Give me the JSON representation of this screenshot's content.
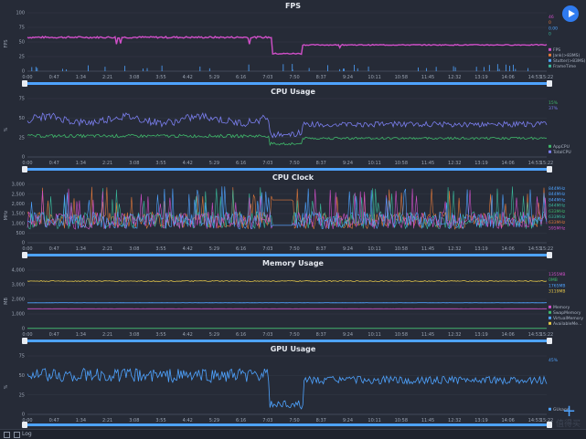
{
  "app": {
    "footer_log_label": "Log",
    "watermark": "值得买"
  },
  "x_tick_labels": [
    "0:00",
    "0:47",
    "1:34",
    "2:21",
    "3:08",
    "3:55",
    "4:42",
    "5:29",
    "6:16",
    "7:03",
    "7:50",
    "8:37",
    "9:24",
    "10:11",
    "10:58",
    "11:45",
    "12:32",
    "13:19",
    "14:06",
    "14:53",
    "15:22"
  ],
  "panels": [
    {
      "key": "fps",
      "title": "FPS",
      "y_unit": "FPS",
      "y_ticks": [
        "100",
        "75",
        "50",
        "25",
        "0"
      ],
      "legend_values": [
        {
          "text": "46",
          "color": "#d04fc8"
        },
        {
          "text": "0",
          "color": "#e0783a"
        },
        {
          "text": "0.00",
          "color": "#4ea3ff"
        },
        {
          "text": "0",
          "color": "#3ab89a"
        }
      ],
      "legend_items": [
        {
          "text": "FPS",
          "color": "#d04fc8"
        },
        {
          "text": "Jank(>83MS)",
          "color": "#e0783a"
        },
        {
          "text": "Stutter(>83MS)",
          "color": "#4ea3ff"
        },
        {
          "text": "FrameTime",
          "color": "#3ab89a"
        }
      ]
    },
    {
      "key": "cpu",
      "title": "CPU Usage",
      "y_unit": "%",
      "y_ticks": [
        "75",
        "50",
        "25",
        "0"
      ],
      "legend_values": [
        {
          "text": "15%",
          "color": "#3fb86a"
        },
        {
          "text": "37%",
          "color": "#7b7ff0"
        }
      ],
      "legend_items": [
        {
          "text": "AppCPU",
          "color": "#3fb86a"
        },
        {
          "text": "TotalCPU",
          "color": "#7b7ff0"
        }
      ]
    },
    {
      "key": "clock",
      "title": "CPU Clock",
      "y_unit": "MHz",
      "y_ticks": [
        "3,000",
        "2,500",
        "2,000",
        "1,500",
        "1,000",
        "500",
        "0"
      ],
      "legend_values": [
        {
          "text": "844MHz",
          "color": "#4ea3ff"
        },
        {
          "text": "844MHz",
          "color": "#4ea3ff"
        },
        {
          "text": "844MHz",
          "color": "#4ea3ff"
        },
        {
          "text": "844MHz",
          "color": "#3ab89a"
        },
        {
          "text": "633MHz",
          "color": "#3fb86a"
        },
        {
          "text": "633MHz",
          "color": "#3ab89a"
        },
        {
          "text": "633MHz",
          "color": "#e0783a"
        },
        {
          "text": "595MHz",
          "color": "#d04fc8"
        }
      ],
      "legend_items": []
    },
    {
      "key": "memory",
      "title": "Memory Usage",
      "y_unit": "MB",
      "y_ticks": [
        "4,000",
        "3,000",
        "2,000",
        "1,000",
        "0"
      ],
      "legend_values": [
        {
          "text": "1355MB",
          "color": "#d04fc8"
        },
        {
          "text": "0MB",
          "color": "#3fb86a"
        },
        {
          "text": "1765MB",
          "color": "#4ea3ff"
        },
        {
          "text": "3119MB",
          "color": "#e6c84a"
        }
      ],
      "legend_items": [
        {
          "text": "Memory",
          "color": "#d04fc8"
        },
        {
          "text": "SwapMemory",
          "color": "#3fb86a"
        },
        {
          "text": "VirtualMemory",
          "color": "#4ea3ff"
        },
        {
          "text": "AvailableMe...",
          "color": "#e6c84a"
        }
      ]
    },
    {
      "key": "gpu",
      "title": "GPU Usage",
      "y_unit": "%",
      "y_ticks": [
        "75",
        "50",
        "25",
        "0"
      ],
      "legend_values": [
        {
          "text": "45%",
          "color": "#4ea3ff"
        }
      ],
      "legend_items": [
        {
          "text": "GUsage",
          "color": "#4ea3ff"
        }
      ]
    }
  ]
}
